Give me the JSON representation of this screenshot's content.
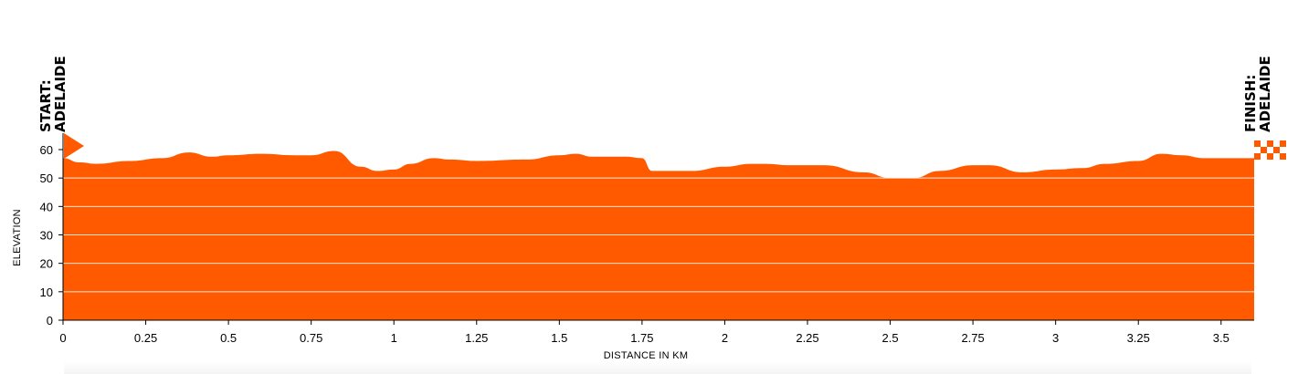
{
  "chart_data": {
    "type": "area",
    "xlabel": "DISTANCE IN KM",
    "ylabel": "ELEVATION",
    "xlim": [
      0,
      3.6
    ],
    "ylim": [
      0,
      60
    ],
    "x_ticks": [
      "0",
      "0.25",
      "0.5",
      "0.75",
      "1",
      "1.25",
      "1.5",
      "1.75",
      "2",
      "2.25",
      "2.5",
      "2.75",
      "3",
      "3.25",
      "3.5"
    ],
    "y_ticks": [
      "0",
      "10",
      "20",
      "30",
      "40",
      "50",
      "60"
    ],
    "grid": true,
    "color": "#ff5a00",
    "start_label": [
      "START:",
      "ADELAIDE"
    ],
    "finish_label": [
      "FINISH:",
      "ADELAIDE"
    ],
    "x": [
      0,
      0.05,
      0.1,
      0.2,
      0.3,
      0.38,
      0.45,
      0.5,
      0.6,
      0.7,
      0.75,
      0.82,
      0.9,
      0.95,
      1.0,
      1.05,
      1.12,
      1.17,
      1.25,
      1.4,
      1.5,
      1.55,
      1.6,
      1.7,
      1.75,
      1.78,
      1.9,
      2.0,
      2.08,
      2.12,
      2.2,
      2.3,
      2.42,
      2.5,
      2.57,
      2.65,
      2.75,
      2.8,
      2.9,
      3.0,
      3.08,
      3.15,
      3.25,
      3.32,
      3.38,
      3.45,
      3.6
    ],
    "values": [
      57,
      55.5,
      55,
      56,
      57,
      59,
      57.5,
      58,
      58.5,
      58,
      58,
      59.5,
      54,
      52.5,
      53,
      55,
      57,
      56.5,
      56,
      56.5,
      58,
      58.5,
      57.5,
      57.5,
      57,
      52.5,
      52.5,
      54,
      55,
      55,
      54.5,
      54.5,
      52,
      50,
      50,
      52.5,
      54.5,
      54.5,
      52,
      53,
      53.5,
      55,
      56,
      58.5,
      58,
      57,
      57
    ]
  }
}
